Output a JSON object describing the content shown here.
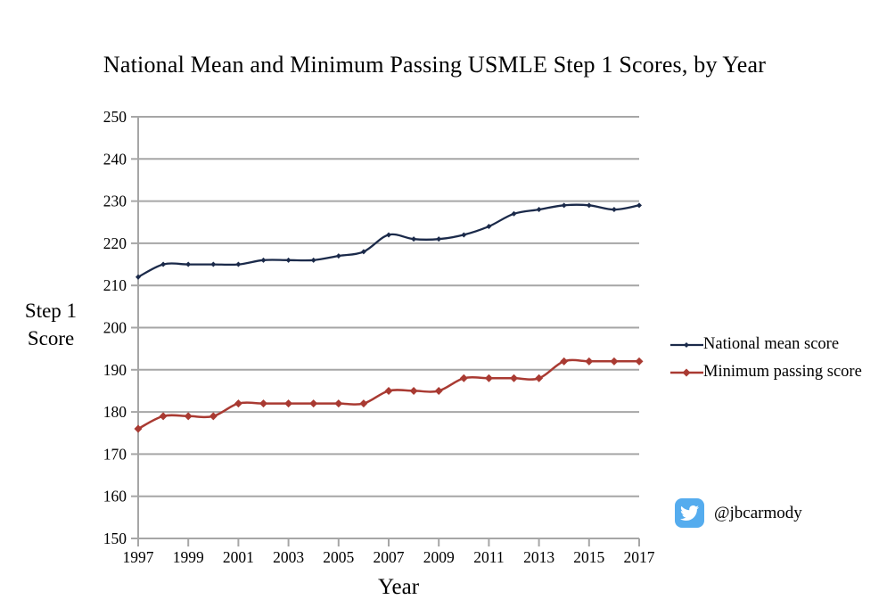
{
  "title": "National Mean and Minimum Passing USMLE Step 1 Scores, by Year",
  "y_axis_label": {
    "line1": "Step 1",
    "line2": "Score"
  },
  "x_axis_label": "Year",
  "legend": {
    "position": "right",
    "items": [
      {
        "label": "National mean score",
        "color": "#1B2A4A"
      },
      {
        "label": "Minimum passing score",
        "color": "#A93A32"
      }
    ]
  },
  "watermark": {
    "icon": "twitter-bird-icon",
    "icon_color": "#55ACEE",
    "handle": "@jbcarmody"
  },
  "chart_data": {
    "type": "line",
    "title": "National Mean and Minimum Passing USMLE Step 1 Scores, by Year",
    "xlabel": "Year",
    "ylabel": "Step 1 Score",
    "x": [
      1997,
      1998,
      1999,
      2000,
      2001,
      2002,
      2003,
      2004,
      2005,
      2006,
      2007,
      2008,
      2009,
      2010,
      2011,
      2012,
      2013,
      2014,
      2015,
      2016,
      2017
    ],
    "series": [
      {
        "name": "National mean score",
        "color": "#1B2A4A",
        "marker": "diamond",
        "marker_half_size": 3,
        "line_width": 2.3,
        "values": [
          212,
          215,
          215,
          215,
          215,
          216,
          216,
          216,
          217,
          218,
          222,
          221,
          221,
          222,
          224,
          227,
          228,
          229,
          229,
          228,
          229
        ]
      },
      {
        "name": "Minimum passing score",
        "color": "#A93A32",
        "marker": "diamond",
        "marker_half_size": 4.5,
        "line_width": 2.5,
        "values": [
          176,
          179,
          179,
          179,
          182,
          182,
          182,
          182,
          182,
          182,
          185,
          185,
          185,
          188,
          188,
          188,
          188,
          192,
          192,
          192,
          192
        ]
      }
    ],
    "ylim": [
      150,
      250
    ],
    "ytick_step": 10,
    "xticks": [
      1997,
      1999,
      2001,
      2003,
      2005,
      2007,
      2009,
      2011,
      2013,
      2015,
      2017
    ],
    "grid": true,
    "gridline_color": "#A6A6A6",
    "smoothed": true,
    "legend_position": "right"
  }
}
